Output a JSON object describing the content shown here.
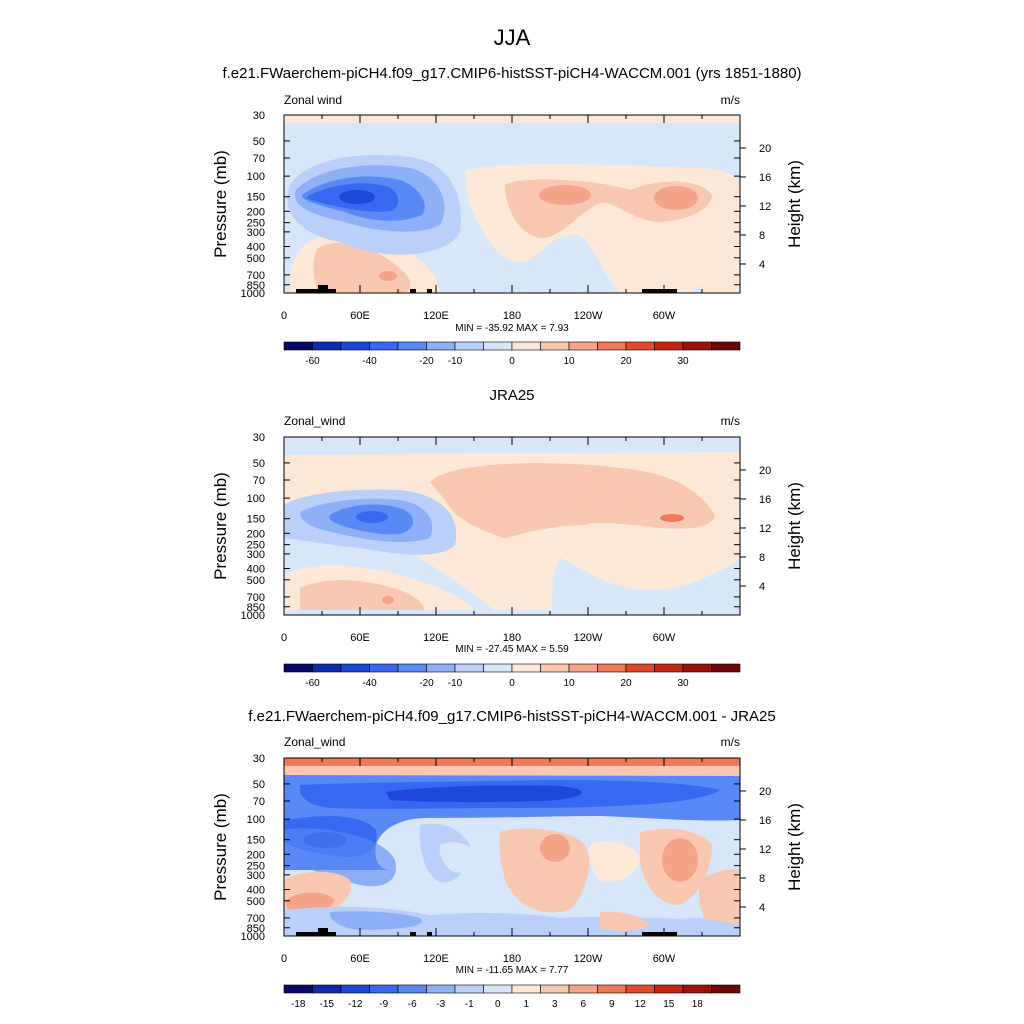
{
  "figure": {
    "season": "JJA",
    "colors": {
      "panel1": [
        "#080868",
        "#0c2bb0",
        "#2048d8",
        "#3868f0",
        "#5a88f4",
        "#8eb0f6",
        "#bad0f8",
        "#d8e6fa",
        "#fde8d8",
        "#f8c8b0",
        "#f4a488",
        "#ee7a58",
        "#e04a2a",
        "#c42414",
        "#9a1208",
        "#6e0606"
      ],
      "panel3": [
        "#080868",
        "#0c2bb0",
        "#2048d8",
        "#3868f0",
        "#5a88f4",
        "#8eb0f6",
        "#bad0f8",
        "#d8e6fa",
        "#fde8d8",
        "#f8c8b0",
        "#f4a488",
        "#ee7a58",
        "#e04a2a",
        "#c42414",
        "#9a1208",
        "#6e0606"
      ]
    }
  },
  "chart_data": [
    {
      "type": "heatmap",
      "title": "f.e21.FWaerchem-piCH4.f09_g17.CMIP6-histSST-piCH4-WACCM.001 (yrs 1851-1880)",
      "left_label": "Zonal wind",
      "right_label": "m/s",
      "ylabel": "Pressure (mb)",
      "y2label": "Height (km)",
      "yticks": [
        "30",
        "50",
        "70",
        "100",
        "150",
        "200",
        "250",
        "300",
        "400",
        "500",
        "700",
        "850",
        "1000"
      ],
      "y2ticks": [
        "20",
        "16",
        "12",
        "8",
        "4"
      ],
      "xticks": [
        "0",
        "60E",
        "120E",
        "180",
        "120W",
        "60W"
      ],
      "stats": "MIN = -35.92  MAX =   7.93",
      "colorbar_labels": [
        "-60",
        "-40",
        "-20",
        "-10",
        "0",
        "10",
        "20",
        "30"
      ]
    },
    {
      "type": "heatmap",
      "title": "JRA25",
      "left_label": "Zonal_wind",
      "right_label": "m/s",
      "ylabel": "Pressure (mb)",
      "y2label": "Height (km)",
      "yticks": [
        "30",
        "50",
        "70",
        "100",
        "150",
        "200",
        "250",
        "300",
        "400",
        "500",
        "700",
        "850",
        "1000"
      ],
      "y2ticks": [
        "20",
        "16",
        "12",
        "8",
        "4"
      ],
      "xticks": [
        "0",
        "60E",
        "120E",
        "180",
        "120W",
        "60W"
      ],
      "stats": "MIN = -27.45  MAX =   5.59",
      "colorbar_labels": [
        "-60",
        "-40",
        "-20",
        "-10",
        "0",
        "10",
        "20",
        "30"
      ]
    },
    {
      "type": "heatmap",
      "title": "f.e21.FWaerchem-piCH4.f09_g17.CMIP6-histSST-piCH4-WACCM.001 - JRA25",
      "left_label": "Zonal_wind",
      "right_label": "m/s",
      "ylabel": "Pressure (mb)",
      "y2label": "Height (km)",
      "yticks": [
        "30",
        "50",
        "70",
        "100",
        "150",
        "200",
        "250",
        "300",
        "400",
        "500",
        "700",
        "850",
        "1000"
      ],
      "y2ticks": [
        "20",
        "16",
        "12",
        "8",
        "4"
      ],
      "xticks": [
        "0",
        "60E",
        "120E",
        "180",
        "120W",
        "60W"
      ],
      "stats": "MIN = -11.65  MAX =   7.77",
      "colorbar_labels": [
        "-18",
        "-15",
        "-12",
        "-9",
        "-6",
        "-3",
        "-1",
        "0",
        "1",
        "3",
        "6",
        "9",
        "12",
        "15",
        "18"
      ]
    }
  ]
}
